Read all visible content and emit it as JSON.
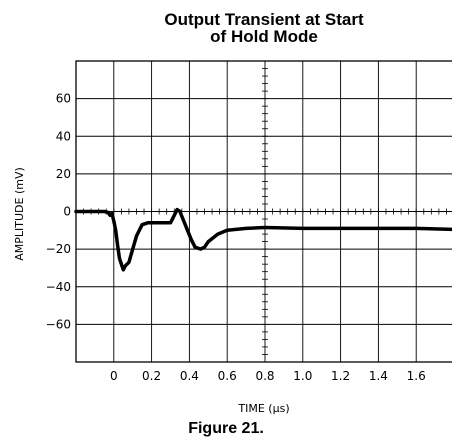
{
  "chart_data": {
    "type": "line",
    "title_line1": "Output Transient at Start",
    "title_line2": "of Hold Mode",
    "xlabel": "TIME (μs)",
    "ylabel": "AMPLITUDE (mV)",
    "caption": "Figure 21.",
    "xlim": [
      -0.2,
      1.8
    ],
    "ylim": [
      -80,
      80
    ],
    "x_ticks": [
      0,
      0.2,
      0.4,
      0.6,
      0.8,
      1.0,
      1.2,
      1.4,
      1.6
    ],
    "x_tick_labels": [
      "0",
      "0.2",
      "0.4",
      "0.6",
      "0.8",
      "1.0",
      "1.2",
      "1.4",
      "1.6"
    ],
    "y_ticks": [
      60,
      40,
      20,
      0,
      -20,
      -40,
      -60
    ],
    "y_tick_labels": [
      "60",
      "40",
      "20",
      "0",
      "−20",
      "−40",
      "−60"
    ],
    "grid": true,
    "series": [
      {
        "x": [
          -0.2,
          -0.1,
          -0.05,
          -0.03,
          -0.02,
          -0.01,
          0.0,
          0.01,
          0.02,
          0.03,
          0.04,
          0.05,
          0.06,
          0.08,
          0.1,
          0.12,
          0.15,
          0.18,
          0.22,
          0.26,
          0.3,
          0.32,
          0.335,
          0.35,
          0.37,
          0.39,
          0.41,
          0.43,
          0.46,
          0.48,
          0.5,
          0.55,
          0.6,
          0.7,
          0.8,
          1.0,
          1.2,
          1.4,
          1.6,
          1.8
        ],
        "y": [
          0,
          0,
          0,
          -0.5,
          -2,
          -1,
          -5,
          -10,
          -18,
          -25,
          -28,
          -31,
          -29,
          -27,
          -20,
          -13,
          -7,
          -6,
          -6,
          -6,
          -6,
          -2,
          1,
          0,
          -5,
          -10,
          -15,
          -19,
          -20,
          -19,
          -16,
          -12,
          -10,
          -9,
          -8.5,
          -9,
          -9,
          -9,
          -9,
          -9.5
        ]
      }
    ]
  }
}
